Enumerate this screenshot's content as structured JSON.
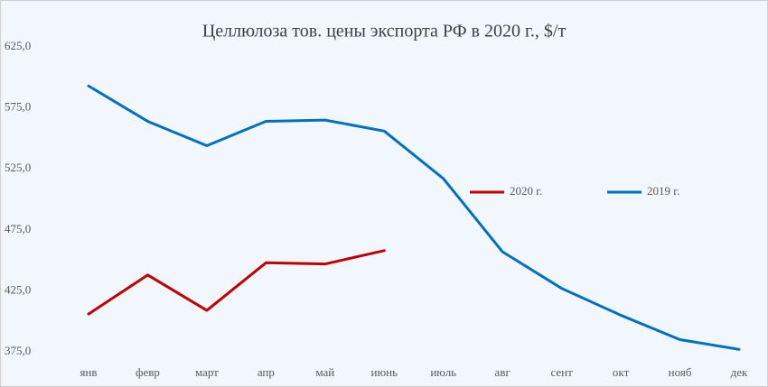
{
  "chart_data": {
    "type": "line",
    "title": "Целлюлоза тов. цены экспорта РФ в 2020 г., $/т",
    "categories": [
      "янв",
      "февр",
      "март",
      "апр",
      "май",
      "июнь",
      "июль",
      "авг",
      "сент",
      "окт",
      "нояб",
      "дек"
    ],
    "series": [
      {
        "name": "2020 г.",
        "color": "#c00000",
        "values": [
          406,
          438,
          409,
          448,
          447,
          458,
          null,
          null,
          null,
          null,
          null,
          null
        ]
      },
      {
        "name": "2019 г.",
        "color": "#0070c0",
        "values": [
          593,
          564,
          544,
          564,
          565,
          556,
          517,
          457,
          427,
          405,
          385,
          377
        ]
      }
    ],
    "ylim": [
      375,
      625
    ],
    "yticks": [
      {
        "value": 375,
        "label": "375,0"
      },
      {
        "value": 425,
        "label": "425,0"
      },
      {
        "value": 475,
        "label": "475,0"
      },
      {
        "value": 525,
        "label": "525,0"
      },
      {
        "value": 575,
        "label": "575,0"
      },
      {
        "value": 625,
        "label": "625,0"
      }
    ],
    "grid": false
  }
}
